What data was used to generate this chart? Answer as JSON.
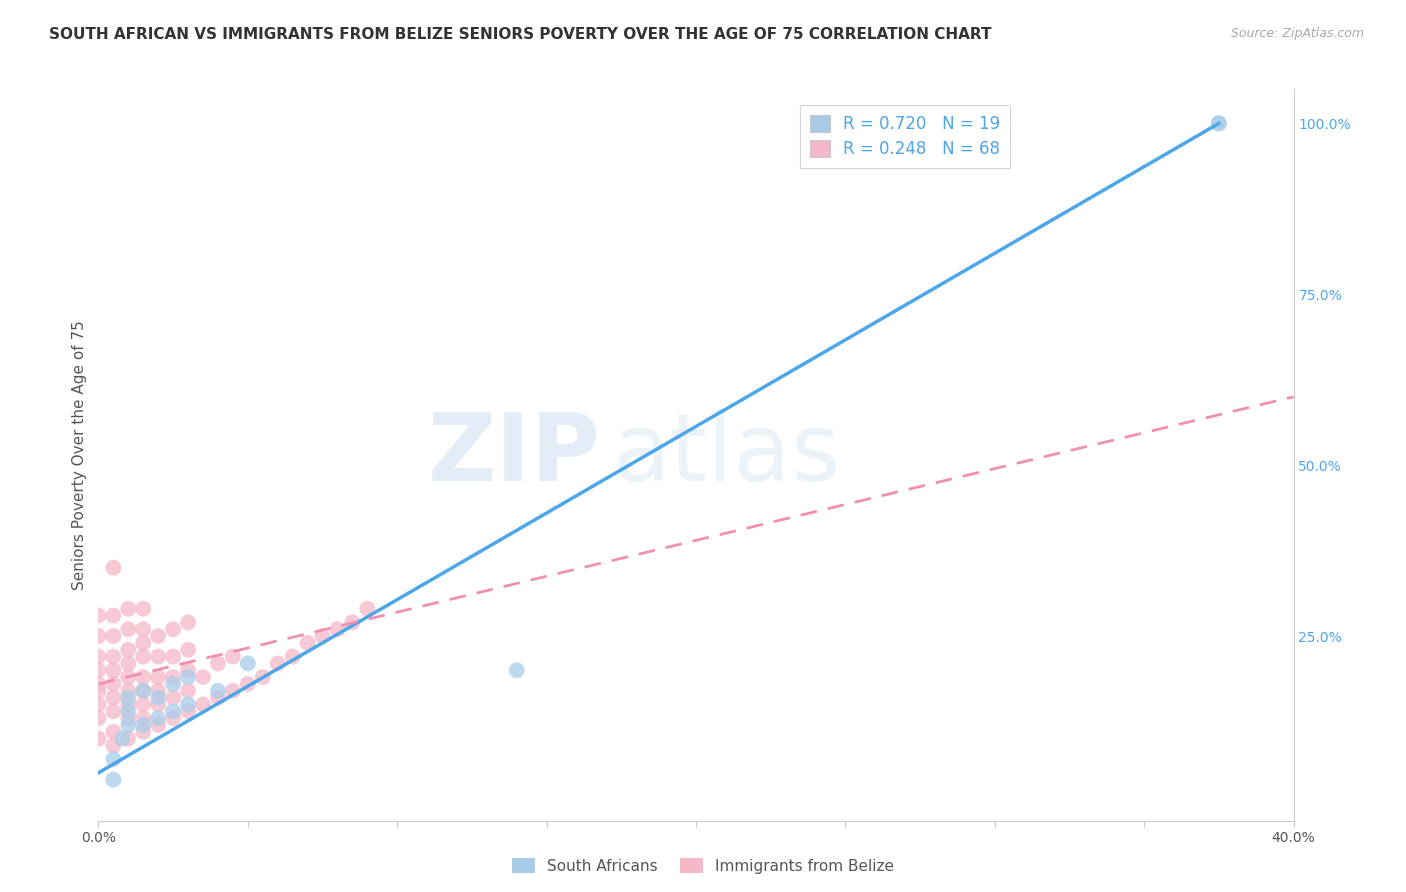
{
  "title": "SOUTH AFRICAN VS IMMIGRANTS FROM BELIZE SENIORS POVERTY OVER THE AGE OF 75 CORRELATION CHART",
  "source": "Source: ZipAtlas.com",
  "ylabel": "Seniors Poverty Over the Age of 75",
  "xlim": [
    0.0,
    0.4
  ],
  "ylim": [
    -0.02,
    1.05
  ],
  "xticks": [
    0.0,
    0.05,
    0.1,
    0.15,
    0.2,
    0.25,
    0.3,
    0.35,
    0.4
  ],
  "yticks_right": [
    0.0,
    0.25,
    0.5,
    0.75,
    1.0
  ],
  "yticklabels_right": [
    "",
    "25.0%",
    "50.0%",
    "75.0%",
    "100.0%"
  ],
  "r_blue": 0.72,
  "n_blue": 19,
  "r_pink": 0.248,
  "n_pink": 68,
  "legend_label_blue": "South Africans",
  "legend_label_pink": "Immigrants from Belize",
  "blue_color": "#a8cce8",
  "pink_color": "#f4b8c8",
  "line_blue_color": "#4da6e8",
  "line_pink_dashes": [
    6,
    4
  ],
  "line_pink_color": "#f090b0",
  "blue_line_x0": 0.0,
  "blue_line_y0": 0.05,
  "blue_line_x1": 0.375,
  "blue_line_y1": 1.0,
  "pink_line_x0": 0.0,
  "pink_line_y0": 0.18,
  "pink_line_x1": 0.4,
  "pink_line_y1": 0.6,
  "watermark_zip": "ZIP",
  "watermark_atlas": "atlas",
  "grid_color": "#e0e0e0",
  "background_color": "#ffffff",
  "title_fontsize": 11,
  "axis_label_fontsize": 11,
  "tick_fontsize": 10,
  "right_tick_color": "#4da6e8",
  "legend_text_color": "#4da6e8",
  "blue_scatter_x": [
    0.005,
    0.005,
    0.008,
    0.01,
    0.01,
    0.01,
    0.015,
    0.015,
    0.02,
    0.02,
    0.025,
    0.025,
    0.03,
    0.03,
    0.04,
    0.05,
    0.14,
    0.375,
    0.375
  ],
  "blue_scatter_y": [
    0.04,
    0.07,
    0.1,
    0.12,
    0.14,
    0.16,
    0.12,
    0.17,
    0.13,
    0.16,
    0.14,
    0.18,
    0.15,
    0.19,
    0.17,
    0.21,
    0.2,
    1.0,
    1.0
  ],
  "pink_scatter_x": [
    0.0,
    0.0,
    0.0,
    0.0,
    0.0,
    0.0,
    0.0,
    0.0,
    0.0,
    0.005,
    0.005,
    0.005,
    0.005,
    0.005,
    0.005,
    0.005,
    0.005,
    0.005,
    0.005,
    0.01,
    0.01,
    0.01,
    0.01,
    0.01,
    0.01,
    0.01,
    0.01,
    0.01,
    0.015,
    0.015,
    0.015,
    0.015,
    0.015,
    0.015,
    0.015,
    0.015,
    0.015,
    0.02,
    0.02,
    0.02,
    0.02,
    0.02,
    0.02,
    0.025,
    0.025,
    0.025,
    0.025,
    0.025,
    0.03,
    0.03,
    0.03,
    0.03,
    0.03,
    0.035,
    0.035,
    0.04,
    0.04,
    0.045,
    0.045,
    0.05,
    0.055,
    0.06,
    0.065,
    0.07,
    0.075,
    0.08,
    0.085,
    0.09
  ],
  "pink_scatter_y": [
    0.1,
    0.13,
    0.15,
    0.17,
    0.18,
    0.2,
    0.22,
    0.25,
    0.28,
    0.09,
    0.11,
    0.14,
    0.16,
    0.18,
    0.2,
    0.22,
    0.25,
    0.28,
    0.35,
    0.1,
    0.13,
    0.15,
    0.17,
    0.19,
    0.21,
    0.23,
    0.26,
    0.29,
    0.11,
    0.13,
    0.15,
    0.17,
    0.19,
    0.22,
    0.24,
    0.26,
    0.29,
    0.12,
    0.15,
    0.17,
    0.19,
    0.22,
    0.25,
    0.13,
    0.16,
    0.19,
    0.22,
    0.26,
    0.14,
    0.17,
    0.2,
    0.23,
    0.27,
    0.15,
    0.19,
    0.16,
    0.21,
    0.17,
    0.22,
    0.18,
    0.19,
    0.21,
    0.22,
    0.24,
    0.25,
    0.26,
    0.27,
    0.29
  ]
}
